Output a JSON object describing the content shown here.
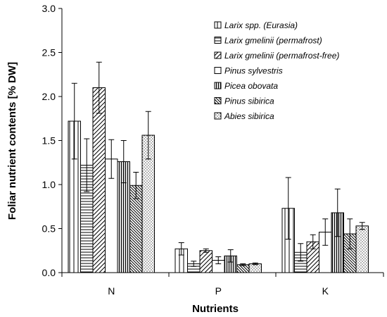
{
  "chart_data": {
    "type": "bar",
    "xlabel": "Nutrients",
    "ylabel": "Foliar nutrient contents [% DW]",
    "ylim": [
      0,
      3.0
    ],
    "yticks": [
      "0.0",
      "0.5",
      "1.0",
      "1.5",
      "2.0",
      "2.5",
      "3.0"
    ],
    "grid": false,
    "legend_position": "top-right",
    "categories": [
      "N",
      "P",
      "K"
    ],
    "series": [
      {
        "name": "Larix spp. (Eurasia)",
        "pattern": "vertical-sparse",
        "values": [
          1.72,
          0.27,
          0.73
        ],
        "errors": [
          0.43,
          0.07,
          0.35
        ]
      },
      {
        "name": "Larix gmelinii (permafrost)",
        "pattern": "horizontal",
        "values": [
          1.22,
          0.1,
          0.23
        ],
        "errors": [
          0.3,
          0.03,
          0.1
        ]
      },
      {
        "name": "Larix gmelinii (permafrost-free)",
        "pattern": "diagonal",
        "values": [
          2.1,
          0.25,
          0.35
        ],
        "errors": [
          0.29,
          0.02,
          0.08
        ]
      },
      {
        "name": "Pinus sylvestris",
        "pattern": "blank",
        "values": [
          1.29,
          0.14,
          0.46
        ],
        "errors": [
          0.22,
          0.04,
          0.15
        ]
      },
      {
        "name": "Picea obovata",
        "pattern": "vertical-dense",
        "values": [
          1.26,
          0.19,
          0.68
        ],
        "errors": [
          0.24,
          0.07,
          0.27
        ]
      },
      {
        "name": "Pinus sibirica",
        "pattern": "backdiagonal",
        "values": [
          0.99,
          0.09,
          0.44
        ],
        "errors": [
          0.15,
          0.01,
          0.17
        ]
      },
      {
        "name": "Abies sibirica",
        "pattern": "dots",
        "values": [
          1.56,
          0.1,
          0.53
        ],
        "errors": [
          0.27,
          0.01,
          0.04
        ]
      }
    ]
  }
}
